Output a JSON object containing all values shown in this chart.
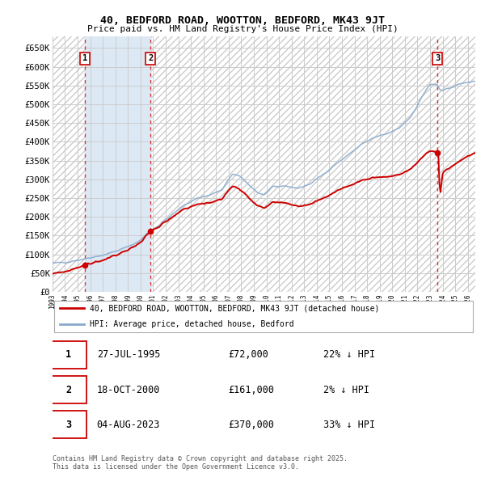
{
  "title": "40, BEDFORD ROAD, WOOTTON, BEDFORD, MK43 9JT",
  "subtitle": "Price paid vs. HM Land Registry's House Price Index (HPI)",
  "ylim": [
    0,
    680000
  ],
  "ytick_vals": [
    0,
    50000,
    100000,
    150000,
    200000,
    250000,
    300000,
    350000,
    400000,
    450000,
    500000,
    550000,
    600000,
    650000
  ],
  "ytick_labels": [
    "£0",
    "£50K",
    "£100K",
    "£150K",
    "£200K",
    "£250K",
    "£300K",
    "£350K",
    "£400K",
    "£450K",
    "£500K",
    "£550K",
    "£600K",
    "£650K"
  ],
  "xlim_start": 1993.0,
  "xlim_end": 2026.6,
  "sale_date_floats": [
    1995.573,
    2000.796,
    2023.589
  ],
  "sale_prices": [
    72000,
    161000,
    370000
  ],
  "sale_labels": [
    "1",
    "2",
    "3"
  ],
  "shaded_start": 1995.573,
  "shaded_end": 2000.796,
  "shaded_color": "#dce9f5",
  "hatch_color": "#cccccc",
  "price_paid_color": "#cc0000",
  "hpi_color": "#88aacc",
  "grid_color": "#cccccc",
  "dashed_color": "#dd3333",
  "legend_price_paid": "40, BEDFORD ROAD, WOOTTON, BEDFORD, MK43 9JT (detached house)",
  "legend_hpi": "HPI: Average price, detached house, Bedford",
  "table_rows": [
    [
      "1",
      "27-JUL-1995",
      "£72,000",
      "22% ↓ HPI"
    ],
    [
      "2",
      "18-OCT-2000",
      "£161,000",
      "2% ↓ HPI"
    ],
    [
      "3",
      "04-AUG-2023",
      "£370,000",
      "33% ↓ HPI"
    ]
  ],
  "copyright_text": "Contains HM Land Registry data © Crown copyright and database right 2025.\nThis data is licensed under the Open Government Licence v3.0."
}
